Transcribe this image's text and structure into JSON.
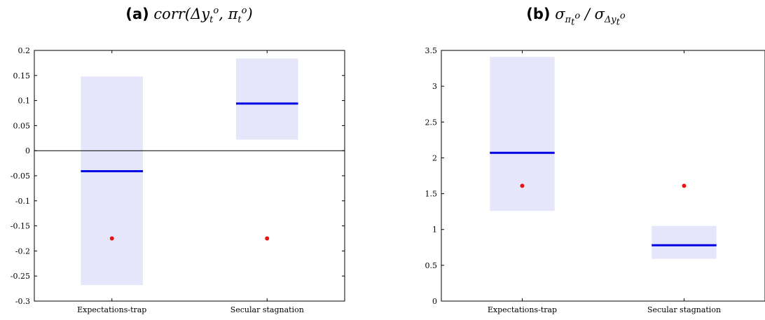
{
  "chart_data": [
    {
      "type": "range-bar",
      "panel_label": "(a)",
      "title_parts": {
        "fn": "corr",
        "arg1": "Δy",
        "sub1": "t",
        "sup1": "o",
        "arg2": "π",
        "sub2": "t",
        "sup2": "o"
      },
      "categories": [
        "Expectations-trap",
        "Secular stagnation"
      ],
      "ylim": [
        -0.3,
        0.2
      ],
      "yticks": [
        -0.3,
        -0.25,
        -0.2,
        -0.15,
        -0.1,
        -0.05,
        0,
        0.05,
        0.1,
        0.15,
        0.2
      ],
      "ytick_labels": [
        "-0.3",
        "-0.25",
        "-0.2",
        "-0.15",
        "-0.1",
        "-0.05",
        "0",
        "0.05",
        "0.1",
        "0.15",
        "0.2"
      ],
      "zero_line": true,
      "series": [
        {
          "kind": "band",
          "low": [
            -0.268,
            0.022
          ],
          "high": [
            0.148,
            0.184
          ]
        },
        {
          "kind": "median",
          "values": [
            -0.041,
            0.094
          ]
        },
        {
          "kind": "point",
          "values": [
            -0.175,
            -0.175
          ]
        }
      ]
    },
    {
      "type": "range-bar",
      "panel_label": "(b)",
      "title_parts": {
        "num": "σ",
        "num_sub": "π",
        "num_sub_sub": "t",
        "num_sub_sup": "o",
        "den": "σ",
        "den_sub": "Δy",
        "den_sub_sub": "t",
        "den_sub_sup": "o"
      },
      "categories": [
        "Expectations-trap",
        "Secular stagnation"
      ],
      "ylim": [
        0,
        3.5
      ],
      "yticks": [
        0,
        0.5,
        1,
        1.5,
        2,
        2.5,
        3,
        3.5
      ],
      "ytick_labels": [
        "0",
        "0.5",
        "1",
        "1.5",
        "2",
        "2.5",
        "3",
        "3.5"
      ],
      "zero_line": false,
      "series": [
        {
          "kind": "band",
          "low": [
            1.26,
            0.59
          ],
          "high": [
            3.41,
            1.05
          ]
        },
        {
          "kind": "median",
          "values": [
            2.07,
            0.78
          ]
        },
        {
          "kind": "point",
          "values": [
            1.61,
            1.61
          ]
        }
      ]
    }
  ],
  "colors": {
    "band": "#e6e6fb",
    "median": "#0000e6",
    "point": "#ee1111",
    "axis": "#000000"
  }
}
